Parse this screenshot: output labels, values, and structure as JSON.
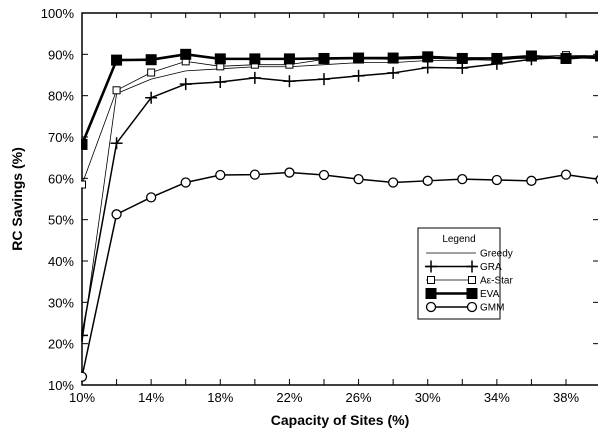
{
  "chart_data": {
    "type": "line",
    "xlabel": "Capacity of Sites (%)",
    "ylabel": "RC Savings (%)",
    "x": [
      10,
      12,
      14,
      16,
      18,
      20,
      22,
      24,
      26,
      28,
      30,
      32,
      34,
      36,
      38,
      40
    ],
    "x_tick_values": [
      10,
      14,
      18,
      22,
      26,
      30,
      34,
      38
    ],
    "x_tick_labels": [
      "10%",
      "14%",
      "18%",
      "22%",
      "26%",
      "30%",
      "34%",
      "38%"
    ],
    "xlim": [
      10,
      40
    ],
    "ylim": [
      10,
      100
    ],
    "y_tick_values": [
      10,
      20,
      30,
      40,
      50,
      60,
      70,
      80,
      90,
      100
    ],
    "y_tick_labels": [
      "10%",
      "20%",
      "30%",
      "40%",
      "50%",
      "60%",
      "70%",
      "80%",
      "90%",
      "100%"
    ],
    "grid": false,
    "legend": {
      "title": "Legend",
      "position": "right"
    },
    "series": [
      {
        "name": "Greedy",
        "marker": "none",
        "values": [
          20,
          80.5,
          84,
          86,
          86.5,
          87,
          87,
          87.5,
          88,
          88,
          88.5,
          88.5,
          89,
          89,
          89.5,
          89.5
        ]
      },
      {
        "name": "GRA",
        "marker": "plus",
        "values": [
          22,
          68.5,
          79.5,
          82.8,
          83.3,
          84.3,
          83.5,
          84,
          84.8,
          85.5,
          86.8,
          86.7,
          87.7,
          88.8,
          89.3,
          89
        ]
      },
      {
        "name": "Aε-Star",
        "marker": "open-square",
        "values": [
          58.5,
          81.3,
          85.6,
          88.3,
          87.1,
          87.5,
          87.5,
          88.8,
          88.9,
          88.8,
          89,
          88.8,
          88.5,
          89.4,
          89.8,
          89.6
        ]
      },
      {
        "name": "EVA",
        "marker": "filled-square",
        "values": [
          68.2,
          88.6,
          88.7,
          90,
          88.9,
          88.9,
          88.9,
          89,
          89.1,
          89.1,
          89.4,
          89,
          89,
          89.6,
          89,
          89.6
        ]
      },
      {
        "name": "GMM",
        "marker": "open-circle",
        "values": [
          12,
          51.3,
          55.4,
          59,
          60.8,
          60.9,
          61.4,
          60.8,
          59.8,
          59,
          59.4,
          59.8,
          59.6,
          59.4,
          60.9,
          59.7
        ]
      }
    ]
  }
}
